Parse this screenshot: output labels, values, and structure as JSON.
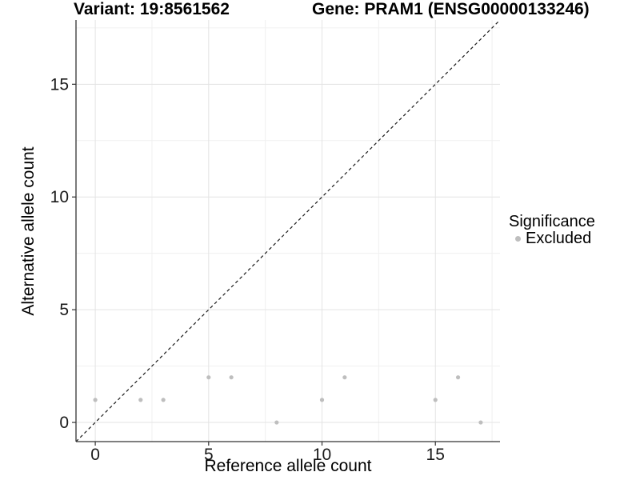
{
  "title": {
    "left": "Variant: 19:8561562",
    "right": "Gene: PRAM1 (ENSG00000133246)"
  },
  "legend": {
    "title": "Significance",
    "items": [
      {
        "label": "Excluded",
        "color": "#BEBEBE"
      }
    ]
  },
  "colors": {
    "background": "#FFFFFF",
    "point": "#BEBEBE",
    "identity_line": "#1A1A1A",
    "axis_line": "#333333",
    "tick_label": "#1A1A1A",
    "grid_major": "#E3E3E3",
    "grid_minor": "#F0F0F0"
  },
  "chart_data": {
    "type": "scatter",
    "title": "Variant: 19:8561562   Gene: PRAM1 (ENSG00000133246)",
    "xlabel": "Reference allele count",
    "ylabel": "Alternative allele count",
    "xlim": [
      -0.85,
      17.85
    ],
    "ylim": [
      -0.85,
      17.85
    ],
    "x_ticks": [
      0,
      5,
      10,
      15
    ],
    "y_ticks": [
      0,
      5,
      10,
      15
    ],
    "x_minor_gridlines": [
      2.5,
      7.5,
      12.5,
      17.5
    ],
    "y_minor_gridlines": [
      2.5,
      7.5,
      12.5,
      17.5
    ],
    "grid": true,
    "legend_position": "right",
    "series": [
      {
        "name": "Excluded",
        "color": "#BEBEBE",
        "points": [
          [
            0,
            1
          ],
          [
            2,
            1
          ],
          [
            3,
            1
          ],
          [
            5,
            2
          ],
          [
            6,
            2
          ],
          [
            8,
            0
          ],
          [
            10,
            1
          ],
          [
            11,
            2
          ],
          [
            15,
            1
          ],
          [
            16,
            2
          ],
          [
            17,
            0
          ]
        ]
      }
    ],
    "reference_line": {
      "type": "identity",
      "style": "dashed",
      "color": "#1A1A1A"
    }
  }
}
